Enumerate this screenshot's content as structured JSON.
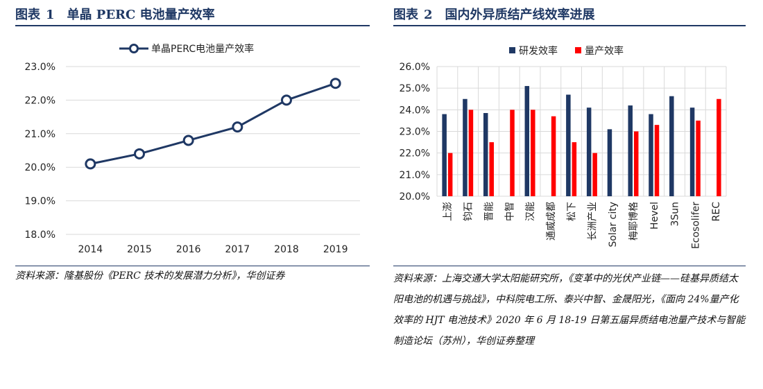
{
  "left": {
    "fig_label": "图表",
    "fig_num": "1",
    "fig_title": "单晶 PERC 电池量产效率",
    "source": "资料来源：隆基股份《PERC 技术的发展潜力分析》，华创证券"
  },
  "right": {
    "fig_label": "图表",
    "fig_num": "2",
    "fig_title": "国内外异质结产线效率进展",
    "source": "资料来源：上海交通大学太阳能研究所，《变革中的光伏产业链——硅基异质结太阳电池的机遇与挑战》，中科院电工所、泰兴中智、金晟阳光，《面向 24%量产化效率的 HJT 电池技术》2020 年 6 月 18-19 日第五届异质结电池量产技术与智能制造论坛（苏州），华创证券整理"
  },
  "chart_data": [
    {
      "type": "line",
      "title": "",
      "xlabel": "",
      "ylabel": "",
      "x": [
        "2014",
        "2015",
        "2016",
        "2017",
        "2018",
        "2019"
      ],
      "series": [
        {
          "name": "单晶PERC电池量产效率",
          "values": [
            20.1,
            20.4,
            20.8,
            21.2,
            22.0,
            22.5
          ]
        }
      ],
      "ylim": [
        18.0,
        23.0
      ],
      "yticks": [
        "18.0%",
        "19.0%",
        "20.0%",
        "21.0%",
        "22.0%",
        "23.0%"
      ],
      "grid": true,
      "legend": "top-center",
      "colors": {
        "line": "#1f3864",
        "marker_fill": "#ffffff",
        "grid": "#d9d9d9"
      }
    },
    {
      "type": "bar",
      "title": "",
      "xlabel": "",
      "ylabel": "",
      "categories": [
        "上澎",
        "钧石",
        "晋能",
        "中智",
        "汉能",
        "通威成都",
        "松下",
        "长洲产业",
        "Solar city",
        "梅耶博格",
        "Hevel",
        "3Sun",
        "Ecosolifer",
        "REC"
      ],
      "series": [
        {
          "name": "研发效率",
          "values": [
            23.8,
            24.5,
            23.85,
            null,
            25.1,
            null,
            24.7,
            24.1,
            23.1,
            24.2,
            23.8,
            24.63,
            24.1,
            null
          ]
        },
        {
          "name": "量产效率",
          "values": [
            22.0,
            24.0,
            22.5,
            24.0,
            24.0,
            23.7,
            22.5,
            22.0,
            null,
            23.0,
            23.3,
            null,
            23.5,
            24.5
          ]
        }
      ],
      "ylim": [
        20.0,
        26.0
      ],
      "yticks": [
        "20.0%",
        "21.0%",
        "22.0%",
        "23.0%",
        "24.0%",
        "25.0%",
        "26.0%"
      ],
      "grid": true,
      "legend": "top-center",
      "colors": {
        "研发效率": "#1f3864",
        "量产效率": "#ff0000",
        "grid": "#d9d9d9"
      }
    }
  ]
}
